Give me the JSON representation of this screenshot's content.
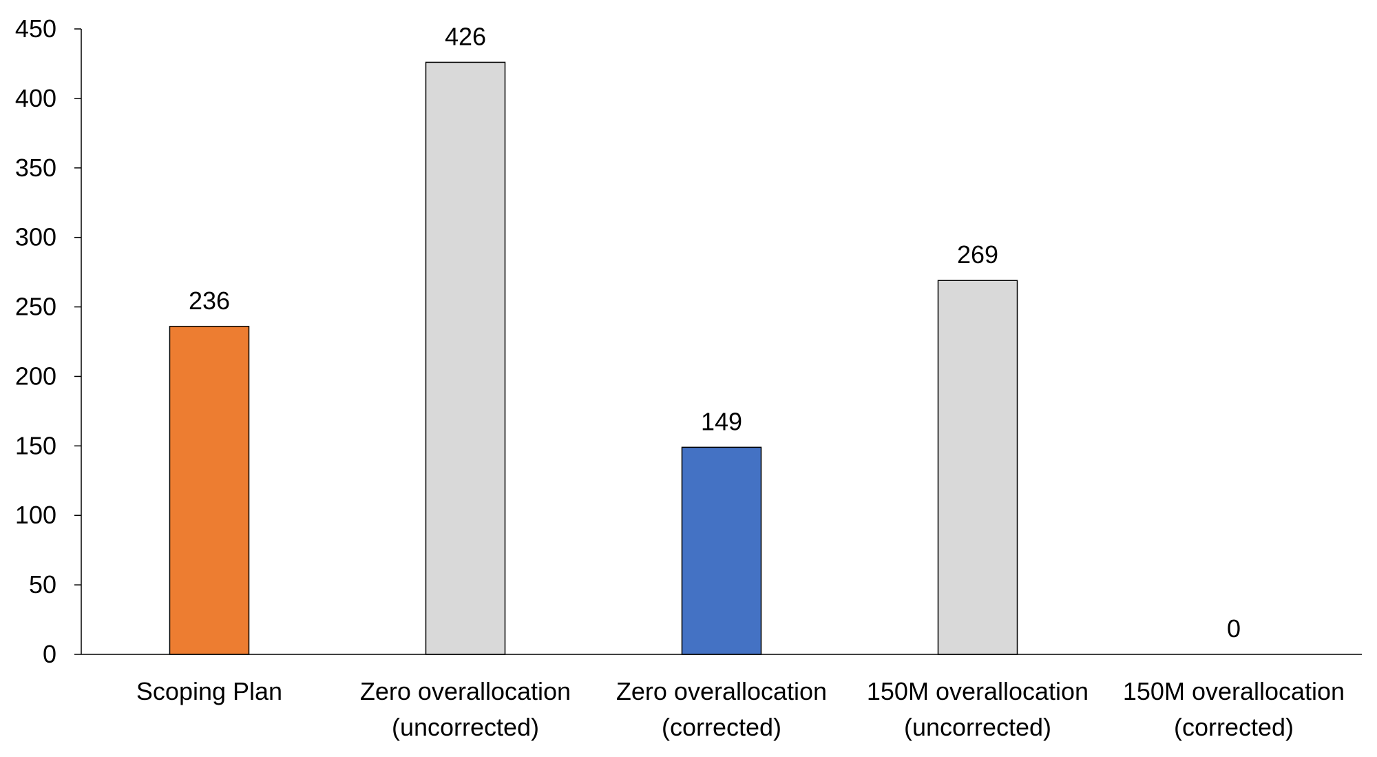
{
  "chart_data": {
    "type": "bar",
    "categories": [
      [
        "Scoping Plan"
      ],
      [
        "Zero overallocation",
        "(uncorrected)"
      ],
      [
        "Zero overallocation",
        "(corrected)"
      ],
      [
        "150M overallocation",
        "(uncorrected)"
      ],
      [
        "150M overallocation",
        "(corrected)"
      ]
    ],
    "values": [
      236,
      426,
      149,
      269,
      0
    ],
    "data_labels": [
      "236",
      "426",
      "149",
      "269",
      "0"
    ],
    "bar_colors": [
      "#ED7D31",
      "#D9D9D9",
      "#4472C4",
      "#D9D9D9",
      "#D9D9D9"
    ],
    "bar_outline": "#000000",
    "title": "",
    "xlabel": "",
    "ylabel": "",
    "ylim": [
      0,
      450
    ],
    "yticks": [
      0,
      50,
      100,
      150,
      200,
      250,
      300,
      350,
      400,
      450
    ],
    "grid": false,
    "legend": "none"
  }
}
